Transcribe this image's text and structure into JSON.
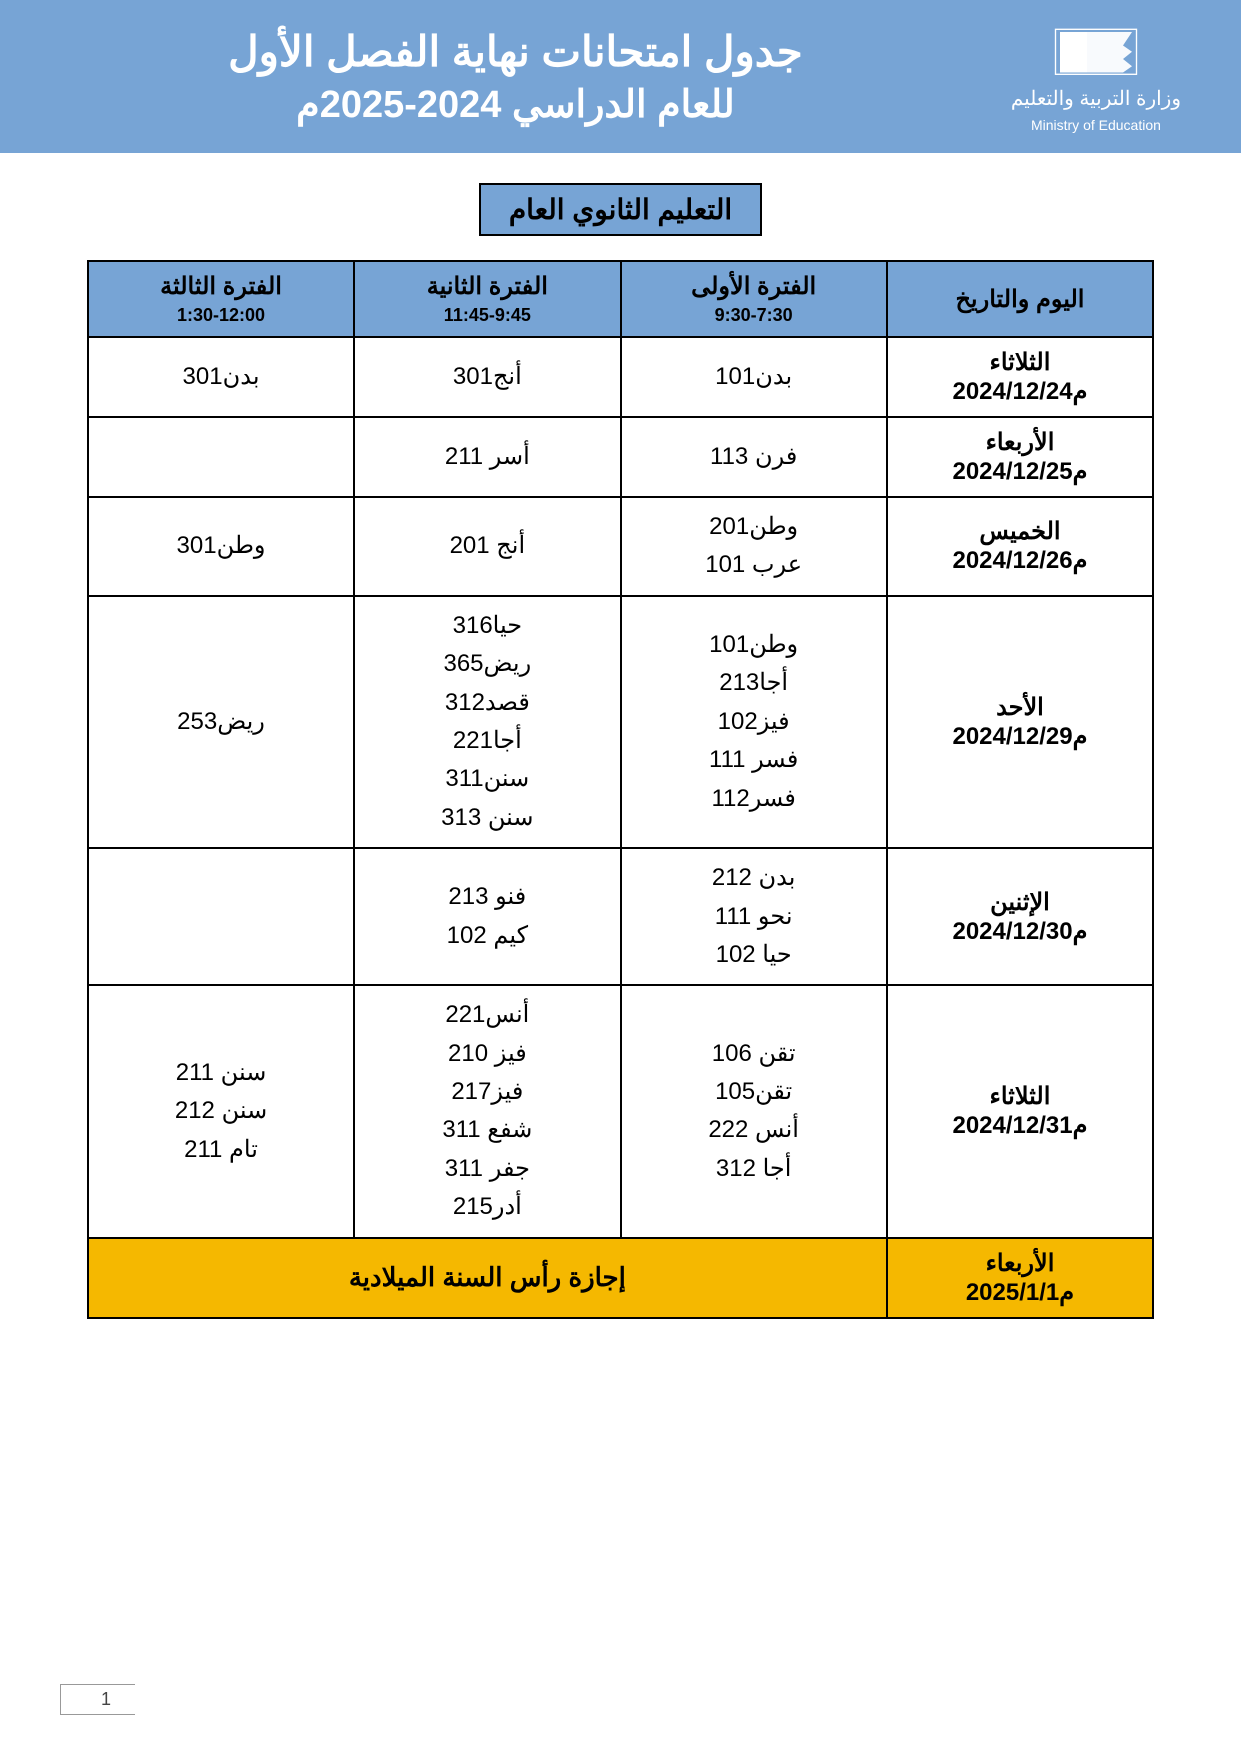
{
  "colors": {
    "bannerBg": "#77a4d5",
    "headerBg": "#77a4d5",
    "sectionBg": "#77a4d5",
    "holidayBg": "#f5b800",
    "pageBg": "#ffffff",
    "border": "#000000",
    "white": "#ffffff"
  },
  "logo": {
    "arabic": "وزارة التربية والتعليم",
    "english": "Ministry of Education"
  },
  "title": {
    "line1": "جدول امتحانات نهاية الفصل الأول",
    "line2": "للعام الدراسي 2024-2025م"
  },
  "sectionTitle": "التعليم الثانوي العام",
  "table": {
    "headers": {
      "date": "اليوم والتاريخ",
      "p1": {
        "label": "الفترة الأولى",
        "time": "9:30-7:30"
      },
      "p2": {
        "label": "الفترة الثانية",
        "time": "11:45-9:45"
      },
      "p3": {
        "label": "الفترة الثالثة",
        "time": "1:30-12:00"
      }
    },
    "colWidths": {
      "date": "25%",
      "p1": "25%",
      "p2": "25%",
      "p3": "25%"
    },
    "rows": [
      {
        "day": "الثلاثاء",
        "date": "2024/12/24م",
        "p1": [
          "بدن101"
        ],
        "p2": [
          "أنج301"
        ],
        "p3": [
          "بدن301"
        ]
      },
      {
        "day": "الأربعاء",
        "date": "2024/12/25م",
        "p1": [
          "فرن 113"
        ],
        "p2": [
          "أسر 211"
        ],
        "p3": []
      },
      {
        "day": "الخميس",
        "date": "2024/12/26م",
        "p1": [
          "وطن201",
          "عرب 101"
        ],
        "p2": [
          "أنج 201"
        ],
        "p3": [
          "وطن301"
        ]
      },
      {
        "day": "الأحد",
        "date": "2024/12/29م",
        "p1": [
          "وطن101",
          "أجا213",
          "فيز102",
          "فسر 111",
          "فسر112"
        ],
        "p2": [
          "حيا316",
          "ريض365",
          "قصد312",
          "أجا221",
          "سنن311",
          "سنن 313"
        ],
        "p3": [
          "ريض253"
        ]
      },
      {
        "day": "الإثنين",
        "date": "2024/12/30م",
        "p1": [
          "بدن 212",
          "نحو 111",
          "حيا 102"
        ],
        "p2": [
          "فنو 213",
          "كيم 102"
        ],
        "p3": []
      },
      {
        "day": "الثلاثاء",
        "date": "2024/12/31م",
        "p1": [
          "تقن 106",
          "تقن105",
          "أنس 222",
          "أجا 312"
        ],
        "p2": [
          "أنس221",
          "فيز 210",
          "فيز217",
          "شفع 311",
          "جفر 311",
          "أدر215"
        ],
        "p3": [
          "سنن 211",
          "سنن 212",
          "تام  211"
        ]
      },
      {
        "day": "الأربعاء",
        "date": "2025/1/1م",
        "holiday": "إجازة رأس السنة الميلادية"
      }
    ]
  },
  "pageNumber": "1"
}
